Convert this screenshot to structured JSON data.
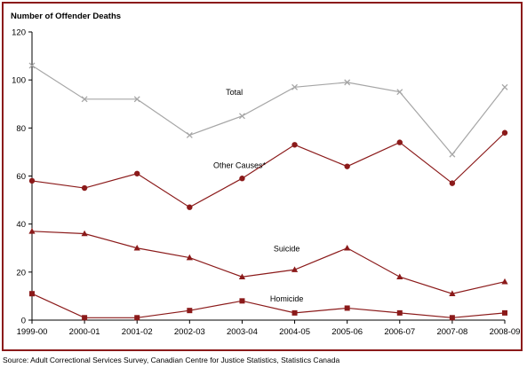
{
  "chart_data": {
    "type": "line",
    "ylabel": "Number of Offender Deaths",
    "xlabel": "",
    "categories": [
      "1999-00",
      "2000-01",
      "2001-02",
      "2002-03",
      "2003-04",
      "2004-05",
      "2005-06",
      "2006-07",
      "2007-08",
      "2008-09"
    ],
    "ylim": [
      0,
      120
    ],
    "yticks": [
      0,
      20,
      40,
      60,
      80,
      100,
      120
    ],
    "grid": false,
    "legend": "inline labels",
    "series": [
      {
        "name": "Total",
        "marker": "x",
        "color": "#a6a6a6",
        "values": [
          106,
          92,
          92,
          77,
          85,
          97,
          99,
          95,
          69,
          97
        ]
      },
      {
        "name": "Other Causes*",
        "marker": "circle",
        "color": "#8b1a1a",
        "values": [
          58,
          55,
          61,
          47,
          59,
          73,
          64,
          74,
          57,
          78
        ]
      },
      {
        "name": "Suicide",
        "marker": "triangle",
        "color": "#8b1a1a",
        "values": [
          37,
          36,
          30,
          26,
          18,
          21,
          30,
          18,
          11,
          16
        ]
      },
      {
        "name": "Homicide",
        "marker": "square",
        "color": "#8b1a1a",
        "values": [
          11,
          1,
          1,
          4,
          8,
          3,
          5,
          3,
          1,
          3
        ]
      }
    ]
  },
  "source": "Source:  Adult Correctional Services Survey, Canadian Centre for Justice Statistics, Statistics Canada"
}
